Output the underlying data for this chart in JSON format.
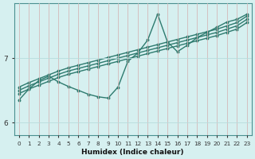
{
  "xlabel": "Humidex (Indice chaleur)",
  "ylabel": "",
  "xlim": [
    -0.5,
    23.5
  ],
  "ylim": [
    5.8,
    7.85
  ],
  "yticks": [
    6,
    7
  ],
  "xticks": [
    0,
    1,
    2,
    3,
    4,
    5,
    6,
    7,
    8,
    9,
    10,
    11,
    12,
    13,
    14,
    15,
    16,
    17,
    18,
    19,
    20,
    21,
    22,
    23
  ],
  "bg_color": "#d6f0f0",
  "grid_color": "#b8dcdc",
  "grid_color_major": "#c8c8c8",
  "line_color": "#2d7a6e",
  "line_width": 1.0,
  "marker": ".",
  "marker_size": 4,
  "lines": [
    {
      "x": [
        0,
        1,
        2,
        3,
        4,
        5,
        6,
        7,
        8,
        9,
        10,
        11,
        12,
        13,
        14,
        15,
        16,
        17,
        18,
        19,
        20,
        21,
        22,
        23
      ],
      "y": [
        6.55,
        6.62,
        6.68,
        6.74,
        6.8,
        6.85,
        6.89,
        6.93,
        6.97,
        7.01,
        7.05,
        7.09,
        7.13,
        7.17,
        7.21,
        7.25,
        7.29,
        7.33,
        7.37,
        7.41,
        7.45,
        7.5,
        7.55,
        7.65
      ]
    },
    {
      "x": [
        0,
        1,
        2,
        3,
        4,
        5,
        6,
        7,
        8,
        9,
        10,
        11,
        12,
        13,
        14,
        15,
        16,
        17,
        18,
        19,
        20,
        21,
        22,
        23
      ],
      "y": [
        6.5,
        6.57,
        6.63,
        6.69,
        6.75,
        6.8,
        6.84,
        6.88,
        6.92,
        6.96,
        7.0,
        7.04,
        7.08,
        7.12,
        7.16,
        7.2,
        7.24,
        7.28,
        7.32,
        7.36,
        7.4,
        7.45,
        7.5,
        7.6
      ]
    },
    {
      "x": [
        0,
        1,
        2,
        3,
        4,
        5,
        6,
        7,
        8,
        9,
        10,
        11,
        12,
        13,
        14,
        15,
        16,
        17,
        18,
        19,
        20,
        21,
        22,
        23
      ],
      "y": [
        6.45,
        6.52,
        6.58,
        6.64,
        6.7,
        6.75,
        6.79,
        6.83,
        6.87,
        6.91,
        6.95,
        6.99,
        7.03,
        7.07,
        7.11,
        7.15,
        7.19,
        7.23,
        7.27,
        7.31,
        7.35,
        7.4,
        7.45,
        7.55
      ]
    },
    {
      "x": [
        0,
        1,
        2,
        3,
        4,
        5,
        6,
        7,
        8,
        9,
        10,
        11,
        12,
        13,
        14,
        15,
        16,
        17,
        18,
        19,
        20,
        21,
        22,
        23
      ],
      "y": [
        6.35,
        6.52,
        6.65,
        6.72,
        6.63,
        6.56,
        6.5,
        6.44,
        6.4,
        6.38,
        6.55,
        6.95,
        7.08,
        7.28,
        7.68,
        7.25,
        7.1,
        7.2,
        7.32,
        7.4,
        7.48,
        7.56,
        7.6,
        7.68
      ]
    }
  ]
}
